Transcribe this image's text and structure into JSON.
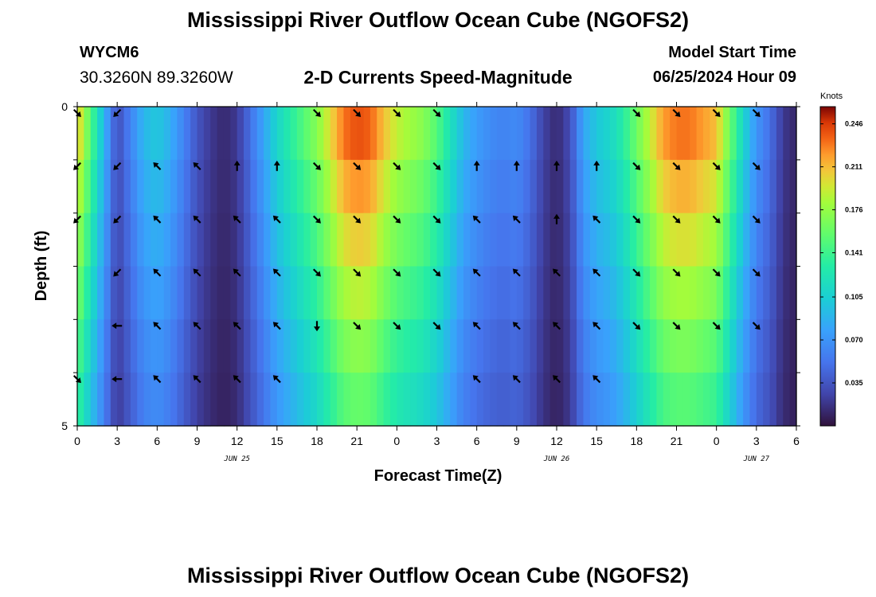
{
  "header": {
    "title": "Mississippi River Outflow Ocean Cube (NGOFS2)",
    "station_id": "WYCM6",
    "station_coords": "30.3260N  89.3260W",
    "model_start_label": "Model Start Time",
    "model_start_value": "06/25/2024 Hour 09"
  },
  "footer": {
    "title": "Mississippi River Outflow Ocean Cube (NGOFS2)"
  },
  "chart_data": {
    "type": "heatmap",
    "title": "2-D Currents Speed-Magnitude",
    "xlabel": "Forecast Time(Z)",
    "ylabel": "Depth (ft)",
    "x_tick_labels": [
      "0",
      "3",
      "6",
      "9",
      "12",
      "15",
      "18",
      "21",
      "0",
      "3",
      "6",
      "9",
      "12",
      "15",
      "18",
      "21",
      "0",
      "3",
      "6"
    ],
    "x_date_labels": [
      {
        "label": "JUN 25",
        "hour_index": 12
      },
      {
        "label": "JUN 26",
        "hour_index": 36
      },
      {
        "label": "JUN 27",
        "hour_index": 51
      }
    ],
    "x_range_hours": [
      0,
      54
    ],
    "y_tick_labels": [
      "0",
      "5"
    ],
    "y_range": [
      0,
      5
    ],
    "depth_levels": 5,
    "colorbar": {
      "units": "Knots",
      "min": 0.0,
      "max": 0.26,
      "tick_labels": [
        "0.246",
        "0.211",
        "0.176",
        "0.141",
        "0.105",
        "0.070",
        "0.035"
      ],
      "tick_values": [
        0.246,
        0.211,
        0.176,
        0.141,
        0.105,
        0.07,
        0.035
      ]
    },
    "speed_profile": [
      {
        "h": 0,
        "v": 0.21
      },
      {
        "h": 1,
        "v": 0.15
      },
      {
        "h": 2,
        "v": 0.09
      },
      {
        "h": 3,
        "v": 0.03
      },
      {
        "h": 4,
        "v": 0.06
      },
      {
        "h": 5,
        "v": 0.09
      },
      {
        "h": 6,
        "v": 0.1
      },
      {
        "h": 7,
        "v": 0.085
      },
      {
        "h": 8,
        "v": 0.06
      },
      {
        "h": 9,
        "v": 0.035
      },
      {
        "h": 10,
        "v": 0.02
      },
      {
        "h": 11,
        "v": 0.012
      },
      {
        "h": 12,
        "v": 0.02
      },
      {
        "h": 13,
        "v": 0.05
      },
      {
        "h": 14,
        "v": 0.08
      },
      {
        "h": 15,
        "v": 0.11
      },
      {
        "h": 16,
        "v": 0.13
      },
      {
        "h": 17,
        "v": 0.15
      },
      {
        "h": 18,
        "v": 0.17
      },
      {
        "h": 19,
        "v": 0.2
      },
      {
        "h": 20,
        "v": 0.23
      },
      {
        "h": 21,
        "v": 0.24
      },
      {
        "h": 22,
        "v": 0.235
      },
      {
        "h": 23,
        "v": 0.21
      },
      {
        "h": 24,
        "v": 0.19
      },
      {
        "h": 25,
        "v": 0.18
      },
      {
        "h": 26,
        "v": 0.17
      },
      {
        "h": 27,
        "v": 0.15
      },
      {
        "h": 28,
        "v": 0.12
      },
      {
        "h": 29,
        "v": 0.09
      },
      {
        "h": 30,
        "v": 0.075
      },
      {
        "h": 31,
        "v": 0.065
      },
      {
        "h": 32,
        "v": 0.06
      },
      {
        "h": 33,
        "v": 0.065
      },
      {
        "h": 34,
        "v": 0.05
      },
      {
        "h": 35,
        "v": 0.025
      },
      {
        "h": 36,
        "v": 0.012
      },
      {
        "h": 37,
        "v": 0.03
      },
      {
        "h": 38,
        "v": 0.08
      },
      {
        "h": 39,
        "v": 0.1
      },
      {
        "h": 40,
        "v": 0.11
      },
      {
        "h": 41,
        "v": 0.13
      },
      {
        "h": 42,
        "v": 0.16
      },
      {
        "h": 43,
        "v": 0.19
      },
      {
        "h": 44,
        "v": 0.22
      },
      {
        "h": 45,
        "v": 0.23
      },
      {
        "h": 46,
        "v": 0.23
      },
      {
        "h": 47,
        "v": 0.22
      },
      {
        "h": 48,
        "v": 0.21
      },
      {
        "h": 49,
        "v": 0.16
      },
      {
        "h": 50,
        "v": 0.11
      },
      {
        "h": 51,
        "v": 0.07
      },
      {
        "h": 52,
        "v": 0.05
      },
      {
        "h": 53,
        "v": 0.02
      },
      {
        "h": 54,
        "v": 0.01
      }
    ],
    "depth_factors": [
      1.0,
      0.93,
      0.86,
      0.79,
      0.72,
      0.66
    ],
    "arrows": [
      {
        "h": 0,
        "dirs": [
          "SE",
          "SW",
          "SW",
          "",
          "",
          "SE"
        ]
      },
      {
        "h": 3,
        "dirs": [
          "SW",
          "SW",
          "SW",
          "SW",
          "W",
          "W"
        ]
      },
      {
        "h": 6,
        "dirs": [
          "",
          "NW",
          "NW",
          "NW",
          "NW",
          "NW"
        ]
      },
      {
        "h": 9,
        "dirs": [
          "",
          "NW",
          "NW",
          "NW",
          "NW",
          "NW"
        ]
      },
      {
        "h": 12,
        "dirs": [
          "",
          "N",
          "NW",
          "NW",
          "NW",
          "NW"
        ]
      },
      {
        "h": 15,
        "dirs": [
          "",
          "N",
          "NW",
          "NW",
          "NW",
          "NW"
        ]
      },
      {
        "h": 18,
        "dirs": [
          "SE",
          "SE",
          "SE",
          "SE",
          "S",
          ""
        ]
      },
      {
        "h": 21,
        "dirs": [
          "SE",
          "SE",
          "SE",
          "SE",
          "SE",
          ""
        ]
      },
      {
        "h": 24,
        "dirs": [
          "SE",
          "SE",
          "SE",
          "SE",
          "SE",
          ""
        ]
      },
      {
        "h": 27,
        "dirs": [
          "SE",
          "SE",
          "SE",
          "SE",
          "SE",
          ""
        ]
      },
      {
        "h": 30,
        "dirs": [
          "",
          "N",
          "NW",
          "NW",
          "NW",
          "NW"
        ]
      },
      {
        "h": 33,
        "dirs": [
          "",
          "N",
          "NW",
          "NW",
          "NW",
          "NW"
        ]
      },
      {
        "h": 36,
        "dirs": [
          "",
          "N",
          "N",
          "NW",
          "NW",
          "NW"
        ]
      },
      {
        "h": 39,
        "dirs": [
          "",
          "N",
          "NW",
          "NW",
          "NW",
          "NW"
        ]
      },
      {
        "h": 42,
        "dirs": [
          "SE",
          "SE",
          "SE",
          "SE",
          "SE",
          ""
        ]
      },
      {
        "h": 45,
        "dirs": [
          "SE",
          "SE",
          "SE",
          "SE",
          "SE",
          ""
        ]
      },
      {
        "h": 48,
        "dirs": [
          "SE",
          "SE",
          "SE",
          "SE",
          "SE",
          ""
        ]
      },
      {
        "h": 51,
        "dirs": [
          "SE",
          "SE",
          "SE",
          "SE",
          "SE",
          ""
        ]
      }
    ],
    "grid": false
  }
}
